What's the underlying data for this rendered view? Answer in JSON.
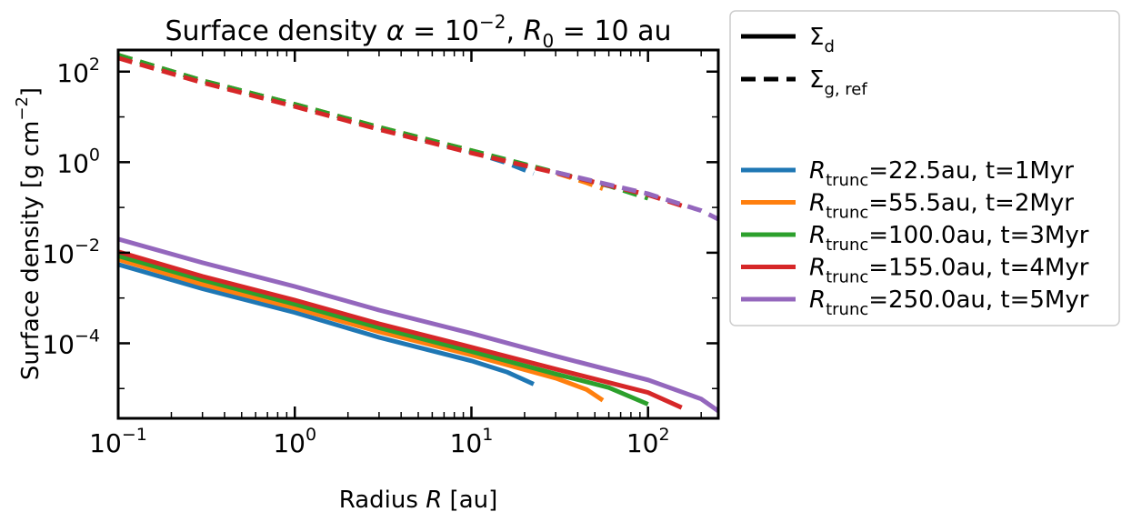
{
  "chart_data": {
    "type": "line",
    "title": "Surface density α = 10⁻², R₀ = 10 au",
    "title_parts": {
      "a": "Surface density ",
      "alpha": "α",
      "b": " = 10",
      "b_exp": "−2",
      "c": ", ",
      "r": "R",
      "r_sub": "0",
      "d": " = 10 au"
    },
    "xlabel": "Radius R [au]",
    "xlabel_parts": {
      "a": "Radius ",
      "r": "R",
      "b": " [au]"
    },
    "ylabel": "Surface density [g cm⁻²]",
    "ylabel_parts": {
      "a": "Surface density [g cm",
      "exp": "−2",
      "b": "]"
    },
    "x_scale": "log",
    "y_scale": "log",
    "xlim": [
      0.1,
      250
    ],
    "ylim": [
      2.2e-06,
      300
    ],
    "x_ticks": [
      {
        "value": 0.1,
        "base": "10",
        "exp": "−1"
      },
      {
        "value": 1,
        "base": "10",
        "exp": "0"
      },
      {
        "value": 10,
        "base": "10",
        "exp": "1"
      },
      {
        "value": 100,
        "base": "10",
        "exp": "2"
      }
    ],
    "y_ticks": [
      {
        "value": 0.0001,
        "base": "10",
        "exp": "−4"
      },
      {
        "value": 0.01,
        "base": "10",
        "exp": "−2"
      },
      {
        "value": 1,
        "base": "10",
        "exp": "0"
      },
      {
        "value": 100,
        "base": "10",
        "exp": "2"
      }
    ],
    "grid": false,
    "legend_position": "outside-right",
    "legend_style": [
      {
        "label": "Σ",
        "sub": "d",
        "style": "solid"
      },
      {
        "label": "Σ",
        "sub": "g, ref",
        "style": "dashed"
      }
    ],
    "series": [
      {
        "name": "Rtrunc=22.5au, t=1Myr",
        "label_r": "R",
        "label_sub": "trunc",
        "label_rest": "=22.5au,   t=1Myr",
        "color": "#1f77b4",
        "dust": [
          [
            0.1,
            0.0055
          ],
          [
            0.3,
            0.0016
          ],
          [
            1,
            0.00048
          ],
          [
            3,
            0.000135
          ],
          [
            10,
            4.1e-05
          ],
          [
            16,
            2.3e-05
          ],
          [
            22.5,
            1.25e-05
          ]
        ],
        "gas": [
          [
            0.1,
            230
          ],
          [
            0.3,
            63
          ],
          [
            1,
            19
          ],
          [
            3,
            5.8
          ],
          [
            10,
            1.7
          ],
          [
            16,
            0.95
          ],
          [
            22.5,
            0.56
          ]
        ]
      },
      {
        "name": "Rtrunc=55.5au, t=2Myr",
        "label_r": "R",
        "label_sub": "trunc",
        "label_rest": "=55.5au,   t=2Myr",
        "color": "#ff7f0e",
        "dust": [
          [
            0.1,
            0.0071
          ],
          [
            0.3,
            0.002
          ],
          [
            1,
            0.0006
          ],
          [
            3,
            0.00018
          ],
          [
            10,
            5.5e-05
          ],
          [
            30,
            1.7e-05
          ],
          [
            45,
            9.5e-06
          ],
          [
            55.5,
            5.5e-06
          ]
        ],
        "gas": [
          [
            0.1,
            230
          ],
          [
            0.3,
            63
          ],
          [
            1,
            19
          ],
          [
            3,
            5.9
          ],
          [
            10,
            1.8
          ],
          [
            30,
            0.58
          ],
          [
            45,
            0.35
          ],
          [
            55.5,
            0.26
          ]
        ]
      },
      {
        "name": "Rtrunc=100.0au, t=3Myr",
        "label_r": "R",
        "label_sub": "trunc",
        "label_rest": "=100.0au, t=3Myr",
        "color": "#2ca02c",
        "dust": [
          [
            0.1,
            0.0085
          ],
          [
            0.3,
            0.0025
          ],
          [
            1,
            0.00073
          ],
          [
            3,
            0.00022
          ],
          [
            10,
            6.6e-05
          ],
          [
            30,
            2.1e-05
          ],
          [
            60,
            1.05e-05
          ],
          [
            100,
            4.5e-06
          ]
        ],
        "gas": [
          [
            0.1,
            230
          ],
          [
            0.3,
            63
          ],
          [
            1,
            19
          ],
          [
            3,
            5.9
          ],
          [
            10,
            1.8
          ],
          [
            30,
            0.6
          ],
          [
            60,
            0.3
          ],
          [
            100,
            0.16
          ]
        ]
      },
      {
        "name": "Rtrunc=155.0au, t=4Myr",
        "label_r": "R",
        "label_sub": "trunc",
        "label_rest": "=155.0au, t=4Myr",
        "color": "#d62728",
        "dust": [
          [
            0.1,
            0.0105
          ],
          [
            0.3,
            0.003
          ],
          [
            1,
            0.0009
          ],
          [
            3,
            0.00027
          ],
          [
            10,
            8.2e-05
          ],
          [
            30,
            2.7e-05
          ],
          [
            100,
            8.2e-06
          ],
          [
            155,
            3.8e-06
          ]
        ],
        "gas": [
          [
            0.1,
            200
          ],
          [
            0.3,
            57
          ],
          [
            1,
            17
          ],
          [
            3,
            5.3
          ],
          [
            10,
            1.6
          ],
          [
            30,
            0.58
          ],
          [
            100,
            0.19
          ],
          [
            155,
            0.11
          ]
        ]
      },
      {
        "name": "Rtrunc=250.0au, t=5Myr",
        "label_r": "R",
        "label_sub": "trunc",
        "label_rest": "=250.0au, t=5Myr",
        "color": "#9467bd",
        "dust": [
          [
            0.1,
            0.02
          ],
          [
            0.3,
            0.006
          ],
          [
            1,
            0.0018
          ],
          [
            3,
            0.00054
          ],
          [
            10,
            0.000165
          ],
          [
            30,
            5.2e-05
          ],
          [
            100,
            1.55e-05
          ],
          [
            200,
            5.9e-06
          ],
          [
            250,
            3.2e-06
          ]
        ],
        "gas": [
          [
            30,
            0.6
          ],
          [
            100,
            0.2
          ],
          [
            200,
            0.085
          ],
          [
            250,
            0.055
          ]
        ]
      }
    ]
  }
}
